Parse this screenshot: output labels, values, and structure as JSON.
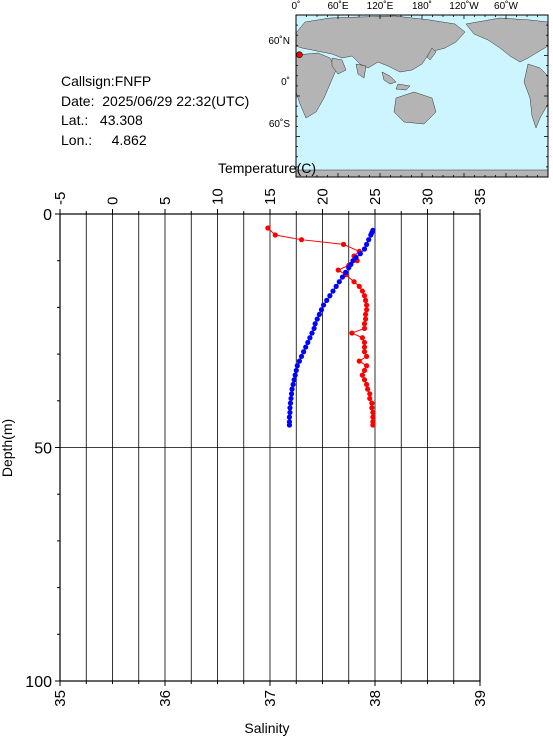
{
  "station": {
    "callsign_label": "Callsign:",
    "callsign": "FNFP",
    "date_label": "Date:",
    "date": "2025/06/29 22:32(UTC)",
    "lat_label": "Lat.:",
    "lat": "43.308",
    "lon_label": "Lon.:",
    "lon": "4.862"
  },
  "map": {
    "top_labels": [
      "0˚",
      "60˚E",
      "120˚E",
      "180˚",
      "120˚W",
      "60˚W"
    ],
    "left_labels": [
      "60˚N",
      "0˚",
      "60˚S"
    ],
    "colors": {
      "ocean": "#ccf5ff",
      "land": "#b4b4b4",
      "marker": "#ff0000"
    },
    "marker": {
      "lat": 43.308,
      "lon": 4.862
    }
  },
  "chart_data": {
    "type": "scatter",
    "temp_axis": {
      "label": "Temperature(C)",
      "ticks": [
        "-5",
        "0",
        "5",
        "10",
        "15",
        "20",
        "25",
        "30",
        "35"
      ],
      "range": [
        -5,
        35
      ]
    },
    "sal_axis": {
      "label": "Salinity",
      "ticks": [
        "35",
        "36",
        "37",
        "38",
        "39"
      ],
      "range": [
        35,
        39
      ]
    },
    "depth_axis": {
      "label": "Depth(m)",
      "ticks": [
        "0",
        "50",
        "100"
      ],
      "range": [
        0,
        100
      ]
    },
    "colors": {
      "temperature": "#0000ff",
      "salinity": "#ff0000",
      "grid": "#000000"
    },
    "series": [
      {
        "key": "temperature",
        "points": [
          [
            24.8,
            3.5
          ],
          [
            24.7,
            4.0
          ],
          [
            24.6,
            4.5
          ],
          [
            24.4,
            5.5
          ],
          [
            24.2,
            6.5
          ],
          [
            24.0,
            7.5
          ],
          [
            23.6,
            8.5
          ],
          [
            23.2,
            9.3
          ],
          [
            22.9,
            10.0
          ],
          [
            22.7,
            10.8
          ],
          [
            22.5,
            11.5
          ],
          [
            22.2,
            12.5
          ],
          [
            21.9,
            13.5
          ],
          [
            21.6,
            14.5
          ],
          [
            21.3,
            15.5
          ],
          [
            21.0,
            16.5
          ],
          [
            20.7,
            17.5
          ],
          [
            20.4,
            18.5
          ],
          [
            20.1,
            19.5
          ],
          [
            19.9,
            20.5
          ],
          [
            19.7,
            21.5
          ],
          [
            19.5,
            22.5
          ],
          [
            19.3,
            23.5
          ],
          [
            19.2,
            24.5
          ],
          [
            19.0,
            25.5
          ],
          [
            18.8,
            26.5
          ],
          [
            18.6,
            27.5
          ],
          [
            18.4,
            28.5
          ],
          [
            18.2,
            29.5
          ],
          [
            18.0,
            30.5
          ],
          [
            17.8,
            31.5
          ],
          [
            17.6,
            32.5
          ],
          [
            17.5,
            33.5
          ],
          [
            17.4,
            34.5
          ],
          [
            17.3,
            35.5
          ],
          [
            17.2,
            36.5
          ],
          [
            17.1,
            37.5
          ],
          [
            17.05,
            38.5
          ],
          [
            17.0,
            39.5
          ],
          [
            16.95,
            40.5
          ],
          [
            16.9,
            41.5
          ],
          [
            16.9,
            42.5
          ],
          [
            16.85,
            43.5
          ],
          [
            16.85,
            44.5
          ],
          [
            16.85,
            45.2
          ]
        ]
      },
      {
        "key": "salinity",
        "points": [
          [
            36.98,
            3.0
          ],
          [
            37.05,
            4.5
          ],
          [
            37.3,
            5.5
          ],
          [
            37.7,
            6.5
          ],
          [
            37.85,
            8.0
          ],
          [
            37.8,
            9.0
          ],
          [
            37.83,
            10.0
          ],
          [
            37.75,
            11.0
          ],
          [
            37.65,
            12.0
          ],
          [
            37.72,
            13.0
          ],
          [
            37.8,
            14.5
          ],
          [
            37.85,
            15.5
          ],
          [
            37.88,
            16.5
          ],
          [
            37.9,
            17.5
          ],
          [
            37.91,
            18.5
          ],
          [
            37.92,
            19.5
          ],
          [
            37.92,
            20.5
          ],
          [
            37.91,
            21.5
          ],
          [
            37.91,
            22.5
          ],
          [
            37.9,
            23.5
          ],
          [
            37.9,
            24.5
          ],
          [
            37.78,
            25.5
          ],
          [
            37.88,
            26.5
          ],
          [
            37.9,
            27.5
          ],
          [
            37.9,
            28.5
          ],
          [
            37.9,
            29.5
          ],
          [
            37.92,
            30.5
          ],
          [
            37.85,
            31.5
          ],
          [
            37.92,
            32.5
          ],
          [
            37.9,
            33.5
          ],
          [
            37.88,
            34.5
          ],
          [
            37.9,
            35.5
          ],
          [
            37.92,
            36.5
          ],
          [
            37.93,
            37.5
          ],
          [
            37.95,
            38.5
          ],
          [
            37.95,
            39.5
          ],
          [
            37.97,
            40.5
          ],
          [
            37.97,
            41.5
          ],
          [
            37.98,
            42.5
          ],
          [
            37.98,
            43.5
          ],
          [
            37.98,
            44.5
          ],
          [
            37.98,
            45.2
          ]
        ]
      }
    ]
  }
}
